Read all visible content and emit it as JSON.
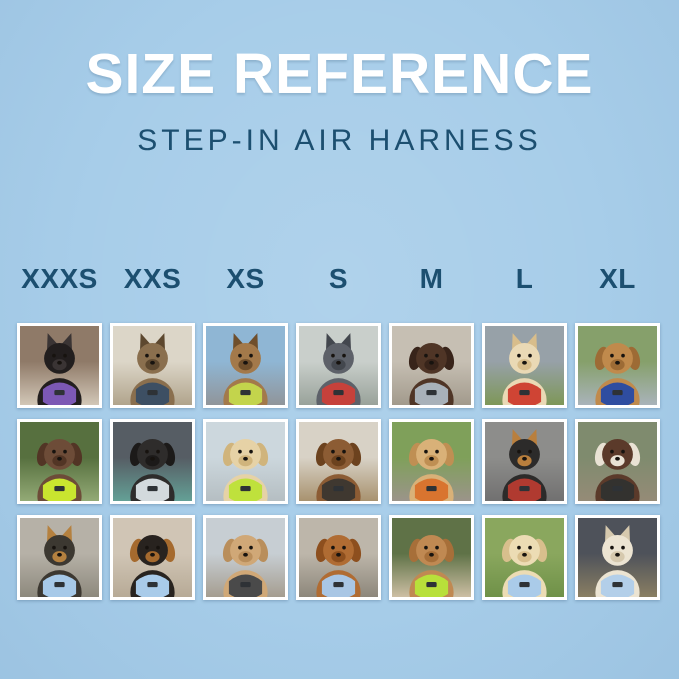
{
  "page": {
    "title": "SIZE REFERENCE",
    "subtitle": "STEP-IN AIR HARNESS"
  },
  "colors": {
    "background": "#a7cde9",
    "title": "#ffffff",
    "heading_text": "#1c4f70",
    "tile_border": "#ffffff"
  },
  "sizes": [
    "XXXS",
    "XXS",
    "XS",
    "S",
    "M",
    "L",
    "XL"
  ],
  "grid": {
    "rows": 3,
    "columns": 7,
    "tiles": [
      {
        "size": "XXXS",
        "row": 1,
        "species": "cat",
        "ears": "pointy",
        "pet": "black kitten in hallway wearing purple harness",
        "harness_color": "purple",
        "harness": "#7c58b4",
        "fur": "#221e1e",
        "fur2": "#3a3434",
        "scene_top": "#8f7a68",
        "scene_bottom": "#d2c7b7"
      },
      {
        "size": "XXS",
        "row": 1,
        "species": "cat",
        "ears": "pointy",
        "pet": "brown tabby cat by window wearing navy harness",
        "harness_color": "navy",
        "harness": "#3d4f63",
        "fur": "#8a6f4e",
        "fur2": "#5d482f",
        "scene_top": "#dcd6c8",
        "scene_bottom": "#b1a48c"
      },
      {
        "size": "XS",
        "row": 1,
        "species": "cat",
        "ears": "pointy",
        "pet": "tabby cat in car wearing lime green harness",
        "harness_color": "lime green",
        "harness": "#c3d44c",
        "fur": "#a3794a",
        "fur2": "#6f4f2c",
        "scene_top": "#8fb6d4",
        "scene_bottom": "#90959a"
      },
      {
        "size": "S",
        "row": 1,
        "species": "dog",
        "ears": "pointy",
        "pet": "gray French bulldog on sidewalk wearing red harness",
        "harness_color": "red",
        "harness": "#c6413b",
        "fur": "#5d6169",
        "fur2": "#43474e",
        "scene_top": "#c9cfcb",
        "scene_bottom": "#99a29a"
      },
      {
        "size": "M",
        "row": 1,
        "species": "dog",
        "ears": "floppy",
        "pet": "chocolate long-haired dachshund wearing gray harness",
        "harness_color": "gray",
        "harness": "#a8b1b9",
        "fur": "#4f3526",
        "fur2": "#38241a",
        "scene_top": "#c6bfb3",
        "scene_bottom": "#a29a8c"
      },
      {
        "size": "L",
        "row": 1,
        "species": "dog",
        "ears": "pointy",
        "pet": "cream Shiba Inu with red ball wearing red harness",
        "harness_color": "red",
        "harness": "#cf4434",
        "fur": "#ead9b5",
        "fur2": "#d8bd8b",
        "scene_top": "#97a1a8",
        "scene_bottom": "#7e9758"
      },
      {
        "size": "XL",
        "row": 1,
        "species": "dog",
        "ears": "floppy",
        "pet": "golden retriever on garden path wearing blue harness",
        "harness_color": "blue",
        "harness": "#2f4da0",
        "fur": "#c08a4c",
        "fur2": "#9d6b35",
        "scene_top": "#86a06b",
        "scene_bottom": "#a9b3ba"
      },
      {
        "size": "XXXS",
        "row": 2,
        "species": "dog",
        "ears": "floppy",
        "pet": "scruffy chocolate doodle puppy wearing neon green harness",
        "harness_color": "neon green",
        "harness": "#c9e52f",
        "fur": "#6d4c38",
        "fur2": "#523525",
        "scene_top": "#57703f",
        "scene_bottom": "#93aa76"
      },
      {
        "size": "XXS",
        "row": 2,
        "species": "dog",
        "ears": "floppy",
        "pet": "black puppy on teal blanket wearing light gray harness",
        "harness_color": "light gray",
        "harness": "#d3dadd",
        "fur": "#2e2c2b",
        "fur2": "#1c1a19",
        "scene_top": "#565d64",
        "scene_bottom": "#64a096"
      },
      {
        "size": "XS",
        "row": 2,
        "species": "dog",
        "ears": "floppy",
        "pet": "cream long-haired dachshund on bench wearing neon green harness",
        "harness_color": "neon green",
        "harness": "#bfe13c",
        "fur": "#e6d2a6",
        "fur2": "#d0b47c",
        "scene_top": "#ccd7dd",
        "scene_bottom": "#b5bec2"
      },
      {
        "size": "S",
        "row": 2,
        "species": "dog",
        "ears": "floppy",
        "pet": "long-haired dachshund on boardwalk wearing black harness",
        "harness_color": "black",
        "harness": "#3f3830",
        "fur": "#8c5c34",
        "fur2": "#6c421e",
        "scene_top": "#d8d2c6",
        "scene_bottom": "#a8926f"
      },
      {
        "size": "M",
        "row": 2,
        "species": "dog",
        "ears": "floppy",
        "pet": "smiling golden retriever puppy wearing orange harness",
        "harness_color": "orange",
        "harness": "#d9742f",
        "fur": "#d9b178",
        "fur2": "#bf8f53",
        "scene_top": "#7fa05a",
        "scene_bottom": "#9b948a"
      },
      {
        "size": "L",
        "row": 2,
        "species": "dog",
        "ears": "pointy",
        "pet": "black-and-tan dog inside metal tunnel wearing red harness",
        "harness_color": "red",
        "harness": "#b03a30",
        "fur": "#2c2b2a",
        "fur2": "#b97f3d",
        "scene_top": "#8d8d8b",
        "scene_bottom": "#717070"
      },
      {
        "size": "XL",
        "row": 2,
        "species": "dog",
        "ears": "floppy",
        "pet": "chocolate-and-white collie on wooden deck wearing black harness",
        "harness_color": "black",
        "harness": "#33322f",
        "fur": "#5b3a2a",
        "fur2": "#e9e2d4",
        "scene_top": "#7f8b6e",
        "scene_bottom": "#958b77"
      },
      {
        "size": "XXXS",
        "row": 3,
        "species": "dog",
        "ears": "pointy",
        "pet": "Yorkshire terrier puppy on sidewalk wearing light blue harness",
        "harness_color": "light blue",
        "harness": "#a7c9e8",
        "fur": "#3c3831",
        "fur2": "#b5813f",
        "scene_top": "#b6b1a7",
        "scene_bottom": "#8d897d"
      },
      {
        "size": "XXS",
        "row": 3,
        "species": "dog",
        "ears": "floppy",
        "pet": "black-and-tan dachshund puppy on sofa wearing light blue harness",
        "harness_color": "light blue",
        "harness": "#a9cbe9",
        "fur": "#28231f",
        "fur2": "#a56a2e",
        "scene_top": "#d0c5b5",
        "scene_bottom": "#b7aa96"
      },
      {
        "size": "XS",
        "row": 3,
        "species": "dog",
        "ears": "floppy",
        "pet": "apricot maltipoo puppy on deck wearing charcoal harness",
        "harness_color": "charcoal",
        "harness": "#4a4a4a",
        "fur": "#d0a877",
        "fur2": "#b98e5b",
        "scene_top": "#c7ced3",
        "scene_bottom": "#a59d90"
      },
      {
        "size": "S",
        "row": 3,
        "species": "dog",
        "ears": "floppy",
        "pet": "red dachshund on pavement wearing light blue harness",
        "harness_color": "light blue",
        "harness": "#a9c6e4",
        "fur": "#b06c33",
        "fur2": "#8d4f1e",
        "scene_top": "#bdb6aa",
        "scene_bottom": "#8d877b"
      },
      {
        "size": "M",
        "row": 3,
        "species": "dog",
        "ears": "floppy",
        "pet": "apricot goldendoodle on stone path wearing neon green harness",
        "harness_color": "neon green",
        "harness": "#b8e03a",
        "fur": "#c08952",
        "fur2": "#a76f39",
        "scene_top": "#5f7247",
        "scene_bottom": "#cdbfa4"
      },
      {
        "size": "L",
        "row": 3,
        "species": "dog",
        "ears": "floppy",
        "pet": "cream golden retriever puppy on grass wearing light blue harness",
        "harness_color": "light blue",
        "harness": "#aacbe9",
        "fur": "#ecdcb4",
        "fur2": "#d8bf8d",
        "scene_top": "#8aa75e",
        "scene_bottom": "#6f9148"
      },
      {
        "size": "XL",
        "row": 3,
        "species": "dog",
        "ears": "pointy",
        "pet": "white shepherd on city street at night wearing light blue harness",
        "harness_color": "light blue",
        "harness": "#b3cfe9",
        "fur": "#ece4d2",
        "fur2": "#d6c9ae",
        "scene_top": "#4e525a",
        "scene_bottom": "#8a7f63"
      }
    ]
  }
}
